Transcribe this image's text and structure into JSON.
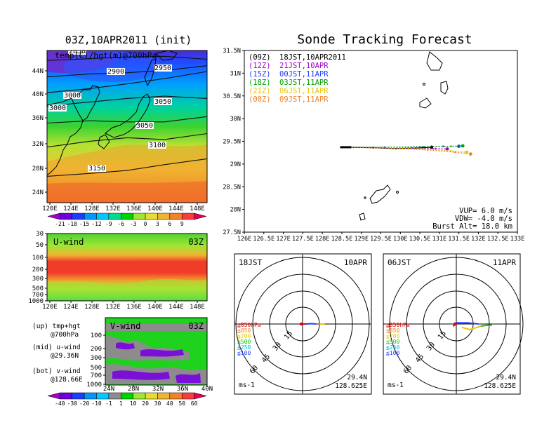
{
  "left_panel": {
    "title": "03Z,10APR2011 (init)",
    "map_label": "temp(C)/hgt(m)@700hPa",
    "contour_labels": [
      "2850",
      "2900",
      "2950",
      "3000",
      "3050",
      "3000",
      "3050",
      "3100",
      "3150"
    ],
    "lat_ticks": [
      "44N",
      "40N",
      "36N",
      "32N",
      "28N",
      "24N"
    ],
    "lon_ticks": [
      "120E",
      "124E",
      "128E",
      "132E",
      "136E",
      "140E",
      "144E",
      "148E"
    ],
    "temp_colorbar": {
      "labels": [
        "-21",
        "-18",
        "-15",
        "-12",
        "-9",
        "-6",
        "-3",
        "0",
        "3",
        "6",
        "9"
      ],
      "colors": [
        "#a000c8",
        "#6e00dc",
        "#1e3cff",
        "#0096ff",
        "#00c8ff",
        "#00dc8c",
        "#00d200",
        "#a0e632",
        "#e6dc32",
        "#f0b432",
        "#f08228",
        "#fa3c3c",
        "#e60050"
      ]
    },
    "u_wind": {
      "label": "U-wind",
      "time": "03Z",
      "y_ticks": [
        "30",
        "50",
        "100",
        "200",
        "300",
        "500",
        "700",
        "1000"
      ],
      "x_ticks": [
        "120E",
        "124E",
        "128E",
        "132E",
        "136E",
        "140E",
        "144E",
        "148E"
      ]
    },
    "v_wind": {
      "label": "V-wind",
      "time": "03Z",
      "y_ticks": [
        "100",
        "200",
        "300",
        "500",
        "700",
        "1000"
      ],
      "x_ticks": [
        "24N",
        "28N",
        "32N",
        "36N",
        "40N"
      ]
    },
    "notes": [
      {
        "line1": "(up) tmp+hgt",
        "line2": "@700hPa"
      },
      {
        "line1": "(mid) u-wind",
        "line2": "@29.36N"
      },
      {
        "line1": "(bot) v-wind",
        "line2": "@128.66E"
      }
    ],
    "wind_colorbar": {
      "labels": [
        "-40",
        "-30",
        "-20",
        "-10",
        "-1",
        "1",
        "10",
        "20",
        "30",
        "40",
        "50",
        "60"
      ],
      "colors": [
        "#a000c8",
        "#6e00dc",
        "#1e3cff",
        "#0096ff",
        "#00c8ff",
        "#8c8c8c",
        "#00d200",
        "#a0e632",
        "#e6dc32",
        "#f0b432",
        "#f08228",
        "#fa3c3c",
        "#e60050"
      ]
    }
  },
  "tracking": {
    "title": "Sonde Tracking Forecast",
    "legend": [
      {
        "code": "(09Z)",
        "time": "18JST,10APR2011",
        "color": "#000000"
      },
      {
        "code": "(12Z)",
        "time": "21JST,10APR",
        "color": "#a000c8"
      },
      {
        "code": "(15Z)",
        "time": "00JST,11APR",
        "color": "#1e3cff"
      },
      {
        "code": "(18Z)",
        "time": "03JST,11APR",
        "color": "#00a000"
      },
      {
        "code": "(21Z)",
        "time": "06JST,11APR",
        "color": "#e6c800"
      },
      {
        "code": "(00Z)",
        "time": "09JST,11APR",
        "color": "#f08228"
      }
    ],
    "lat_ticks": [
      "31.5N",
      "31N",
      "30.5N",
      "30N",
      "29.5N",
      "29N",
      "28.5N",
      "28N",
      "27.5N"
    ],
    "lon_ticks": [
      "126E",
      "126.5E",
      "127E",
      "127.5E",
      "128E",
      "128.5E",
      "129E",
      "129.5E",
      "130E",
      "130.5E",
      "131E",
      "131.5E",
      "132E",
      "132.5E",
      "133E"
    ],
    "params": [
      "VUP= 6.0 m/s",
      "VDW= -4.0 m/s",
      "Burst Alt= 18.0 km"
    ]
  },
  "polar_plots": [
    {
      "time": "18JST",
      "date": "10APR",
      "lat": "29.4N",
      "lon": "128.625E",
      "unit": "ms-1",
      "ring_labels": [
        "15",
        "30",
        "45",
        "60"
      ],
      "levels": [
        {
          "label": "≧850hPa",
          "color": "#e60000"
        },
        {
          "label": "≦850",
          "color": "#f08228"
        },
        {
          "label": "≦700",
          "color": "#e6c800"
        },
        {
          "label": "≦500",
          "color": "#00c800"
        },
        {
          "label": "≦250",
          "color": "#00b4dc"
        },
        {
          "label": "≦100",
          "color": "#1e3cff"
        }
      ]
    },
    {
      "time": "06JST",
      "date": "11APR",
      "lat": "29.4N",
      "lon": "128.625E",
      "unit": "ms-1",
      "ring_labels": [
        "15",
        "30",
        "45",
        "60"
      ],
      "levels": [
        {
          "label": "≧850hPa",
          "color": "#e60000"
        },
        {
          "label": "≦850",
          "color": "#f08228"
        },
        {
          "label": "≦700",
          "color": "#e6c800"
        },
        {
          "label": "≦500",
          "color": "#00c800"
        },
        {
          "label": "≦250",
          "color": "#00b4dc"
        },
        {
          "label": "≦100",
          "color": "#1e3cff"
        }
      ]
    }
  ],
  "chart_data": [
    {
      "type": "heatmap",
      "title": "03Z,10APR2011 (init)",
      "subtitle": "temp(C)/hgt(m)@700hPa",
      "xlim": [
        120,
        150
      ],
      "ylim": [
        22,
        48
      ],
      "contours": [
        {
          "value": 2850,
          "y": [
            46.3,
            46.6,
            46.9,
            47.0,
            46.5
          ]
        },
        {
          "value": 2900,
          "y": [
            43.5,
            44.0,
            44.2,
            44.6,
            45.4
          ]
        },
        {
          "value": 2950,
          "y": [
            40.8,
            41.5,
            42.3,
            43.2,
            44.4
          ]
        },
        {
          "value": 3000,
          "y": [
            38.5,
            39.2,
            39.8,
            40.2,
            39.8
          ]
        },
        {
          "value": 3050,
          "y": [
            35.6,
            36.0,
            35.8,
            35.8,
            36.7
          ]
        },
        {
          "value": 3100,
          "y": [
            31.5,
            32.5,
            33.1,
            32.8,
            33.8
          ]
        },
        {
          "value": 3150,
          "y": [
            26.5,
            27.0,
            27.5,
            28.5,
            29.5
          ]
        }
      ],
      "contour_x": [
        120,
        128,
        135,
        142,
        150
      ]
    },
    {
      "type": "line",
      "title": "Sonde Tracking Forecast",
      "xlim": [
        126,
        133
      ],
      "ylim": [
        27.5,
        31.5
      ],
      "series": [
        {
          "name": "(09Z) 18JST,10APR2011",
          "x": [
            128.6,
            129.3,
            129.9,
            130.4,
            130.8
          ],
          "y": [
            29.37,
            29.36,
            29.34,
            29.35,
            29.37
          ]
        },
        {
          "name": "(12Z) 21JST,10APR",
          "x": [
            128.6,
            129.5,
            130.3,
            130.9,
            131.2
          ],
          "y": [
            29.37,
            29.36,
            29.35,
            29.34,
            29.33
          ]
        },
        {
          "name": "(15Z) 00JST,11APR",
          "x": [
            128.6,
            129.6,
            130.5,
            131.1,
            131.5
          ],
          "y": [
            29.37,
            29.37,
            29.38,
            29.39,
            29.39
          ]
        },
        {
          "name": "(18Z) 03JST,11APR",
          "x": [
            128.6,
            129.7,
            130.6,
            131.3,
            131.6
          ],
          "y": [
            29.37,
            29.37,
            29.38,
            29.39,
            29.4
          ]
        },
        {
          "name": "(21Z) 06JST,11APR",
          "x": [
            128.6,
            129.7,
            130.6,
            131.3,
            131.7
          ],
          "y": [
            29.37,
            29.36,
            29.33,
            29.29,
            29.26
          ]
        },
        {
          "name": "(00Z) 09JST,11APR",
          "x": [
            128.6,
            129.7,
            130.7,
            131.4,
            131.8
          ],
          "y": [
            29.37,
            29.35,
            29.31,
            29.26,
            29.22
          ]
        }
      ]
    },
    {
      "type": "line",
      "title": "18JST 10APR",
      "series": [
        {
          "name": "≧850hPa",
          "x": [
            0,
            3
          ],
          "y": [
            0,
            0
          ]
        },
        {
          "name": "≦700",
          "x": [
            15,
            20
          ],
          "y": [
            0,
            0
          ]
        },
        {
          "name": "≦100",
          "x": [
            3,
            8,
            12
          ],
          "y": [
            0,
            0.3,
            0
          ]
        }
      ]
    },
    {
      "type": "line",
      "title": "06JST 11APR",
      "series": [
        {
          "name": "≧850hPa",
          "x": [
            -3,
            0
          ],
          "y": [
            -2,
            0
          ]
        },
        {
          "name": "≦700",
          "x": [
            5,
            12,
            22
          ],
          "y": [
            -3,
            -5,
            -2
          ]
        },
        {
          "name": "≦500",
          "x": [
            22,
            28,
            32
          ],
          "y": [
            -2,
            -1,
            -1
          ]
        },
        {
          "name": "≦100",
          "x": [
            0,
            10,
            20
          ],
          "y": [
            1,
            1,
            0
          ]
        }
      ]
    }
  ]
}
